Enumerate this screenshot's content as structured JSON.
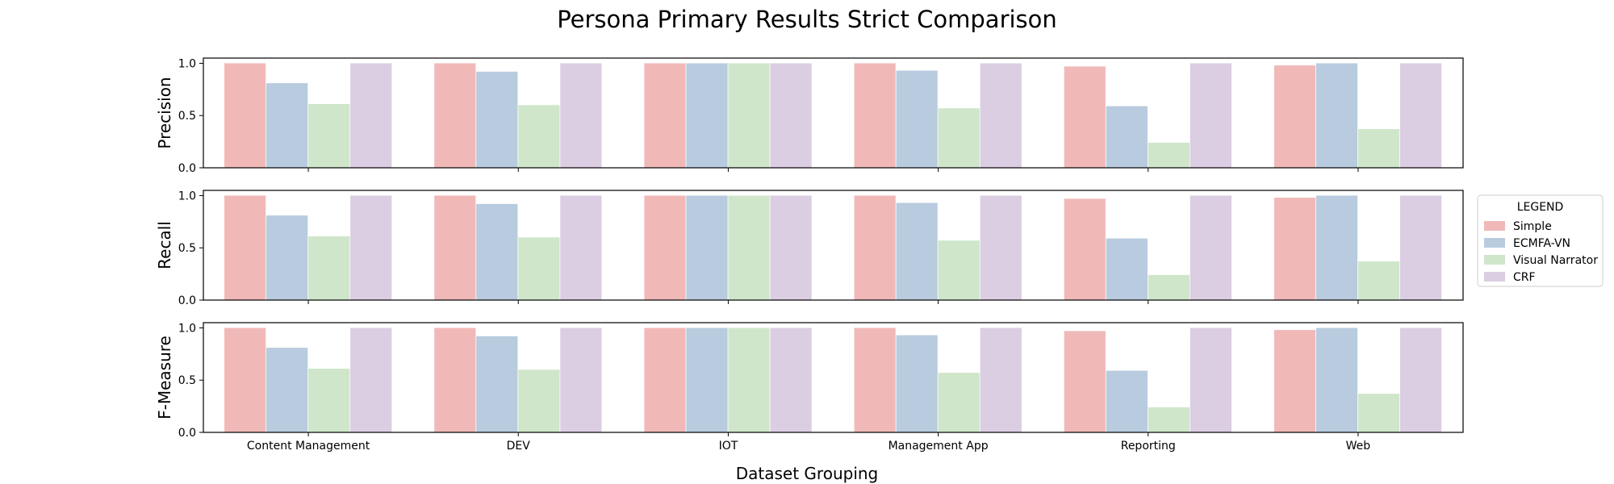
{
  "chart_data": {
    "type": "bar",
    "title": "Persona Primary Results Strict Comparison",
    "xlabel": "Dataset Grouping",
    "categories": [
      "Content Management",
      "DEV",
      "IOT",
      "Management App",
      "Reporting",
      "Web"
    ],
    "ylim": [
      0,
      1.05
    ],
    "yticks": [
      "0.0",
      "0.5",
      "1.0"
    ],
    "grid": false,
    "legend": {
      "title": "LEGEND",
      "placement": "right",
      "entries": [
        "Simple",
        "ECMFA-VN",
        "Visual Narrator",
        "CRF"
      ]
    },
    "colors": [
      "#f0b9b8",
      "#b8cbdf",
      "#cfe6ca",
      "#dbcde2"
    ],
    "panels": [
      {
        "ylabel": "Precision",
        "series": [
          {
            "name": "Simple",
            "values": [
              1.0,
              1.0,
              1.0,
              1.0,
              0.97,
              0.98
            ]
          },
          {
            "name": "ECMFA-VN",
            "values": [
              0.81,
              0.92,
              1.0,
              0.93,
              0.59,
              1.0
            ]
          },
          {
            "name": "Visual Narrator",
            "values": [
              0.61,
              0.6,
              1.0,
              0.57,
              0.24,
              0.37
            ]
          },
          {
            "name": "CRF",
            "values": [
              1.0,
              1.0,
              1.0,
              1.0,
              1.0,
              1.0
            ]
          }
        ]
      },
      {
        "ylabel": "Recall",
        "series": [
          {
            "name": "Simple",
            "values": [
              1.0,
              1.0,
              1.0,
              1.0,
              0.97,
              0.98
            ]
          },
          {
            "name": "ECMFA-VN",
            "values": [
              0.81,
              0.92,
              1.0,
              0.93,
              0.59,
              1.0
            ]
          },
          {
            "name": "Visual Narrator",
            "values": [
              0.61,
              0.6,
              1.0,
              0.57,
              0.24,
              0.37
            ]
          },
          {
            "name": "CRF",
            "values": [
              1.0,
              1.0,
              1.0,
              1.0,
              1.0,
              1.0
            ]
          }
        ]
      },
      {
        "ylabel": "F-Measure",
        "series": [
          {
            "name": "Simple",
            "values": [
              1.0,
              1.0,
              1.0,
              1.0,
              0.97,
              0.98
            ]
          },
          {
            "name": "ECMFA-VN",
            "values": [
              0.81,
              0.92,
              1.0,
              0.93,
              0.59,
              1.0
            ]
          },
          {
            "name": "Visual Narrator",
            "values": [
              0.61,
              0.6,
              1.0,
              0.57,
              0.24,
              0.37
            ]
          },
          {
            "name": "CRF",
            "values": [
              1.0,
              1.0,
              1.0,
              1.0,
              1.0,
              1.0
            ]
          }
        ]
      }
    ]
  }
}
